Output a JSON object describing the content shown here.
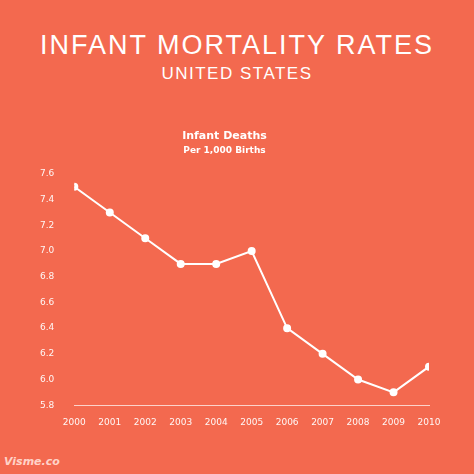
{
  "chart_data": {
    "type": "line",
    "title": "INFANT MORTALITY RATES",
    "subtitle": "UNITED STATES",
    "chart_title": "Infant Deaths",
    "chart_subtitle": "Per 1,000 Births",
    "annotations": [
      "Visme.co"
    ],
    "categories": [
      "2000",
      "2001",
      "2002",
      "2003",
      "2004",
      "2005",
      "2006",
      "2007",
      "2008",
      "2009",
      "2010"
    ],
    "values": [
      7.5,
      7.3,
      7.1,
      6.9,
      6.9,
      7.0,
      6.4,
      6.2,
      6.0,
      5.9,
      6.1
    ],
    "color": "#ffffff",
    "marker": "circle",
    "line_style": "solid",
    "ylim": [
      5.8,
      7.6
    ],
    "yticks": [
      5.8,
      {
        "value": 6,
        "label": "6.0"
      },
      6.2,
      6.4,
      6.6,
      6.8,
      {
        "value": 7,
        "label": "7.0"
      },
      7.2,
      7.4,
      7.6
    ],
    "grid": false
  }
}
